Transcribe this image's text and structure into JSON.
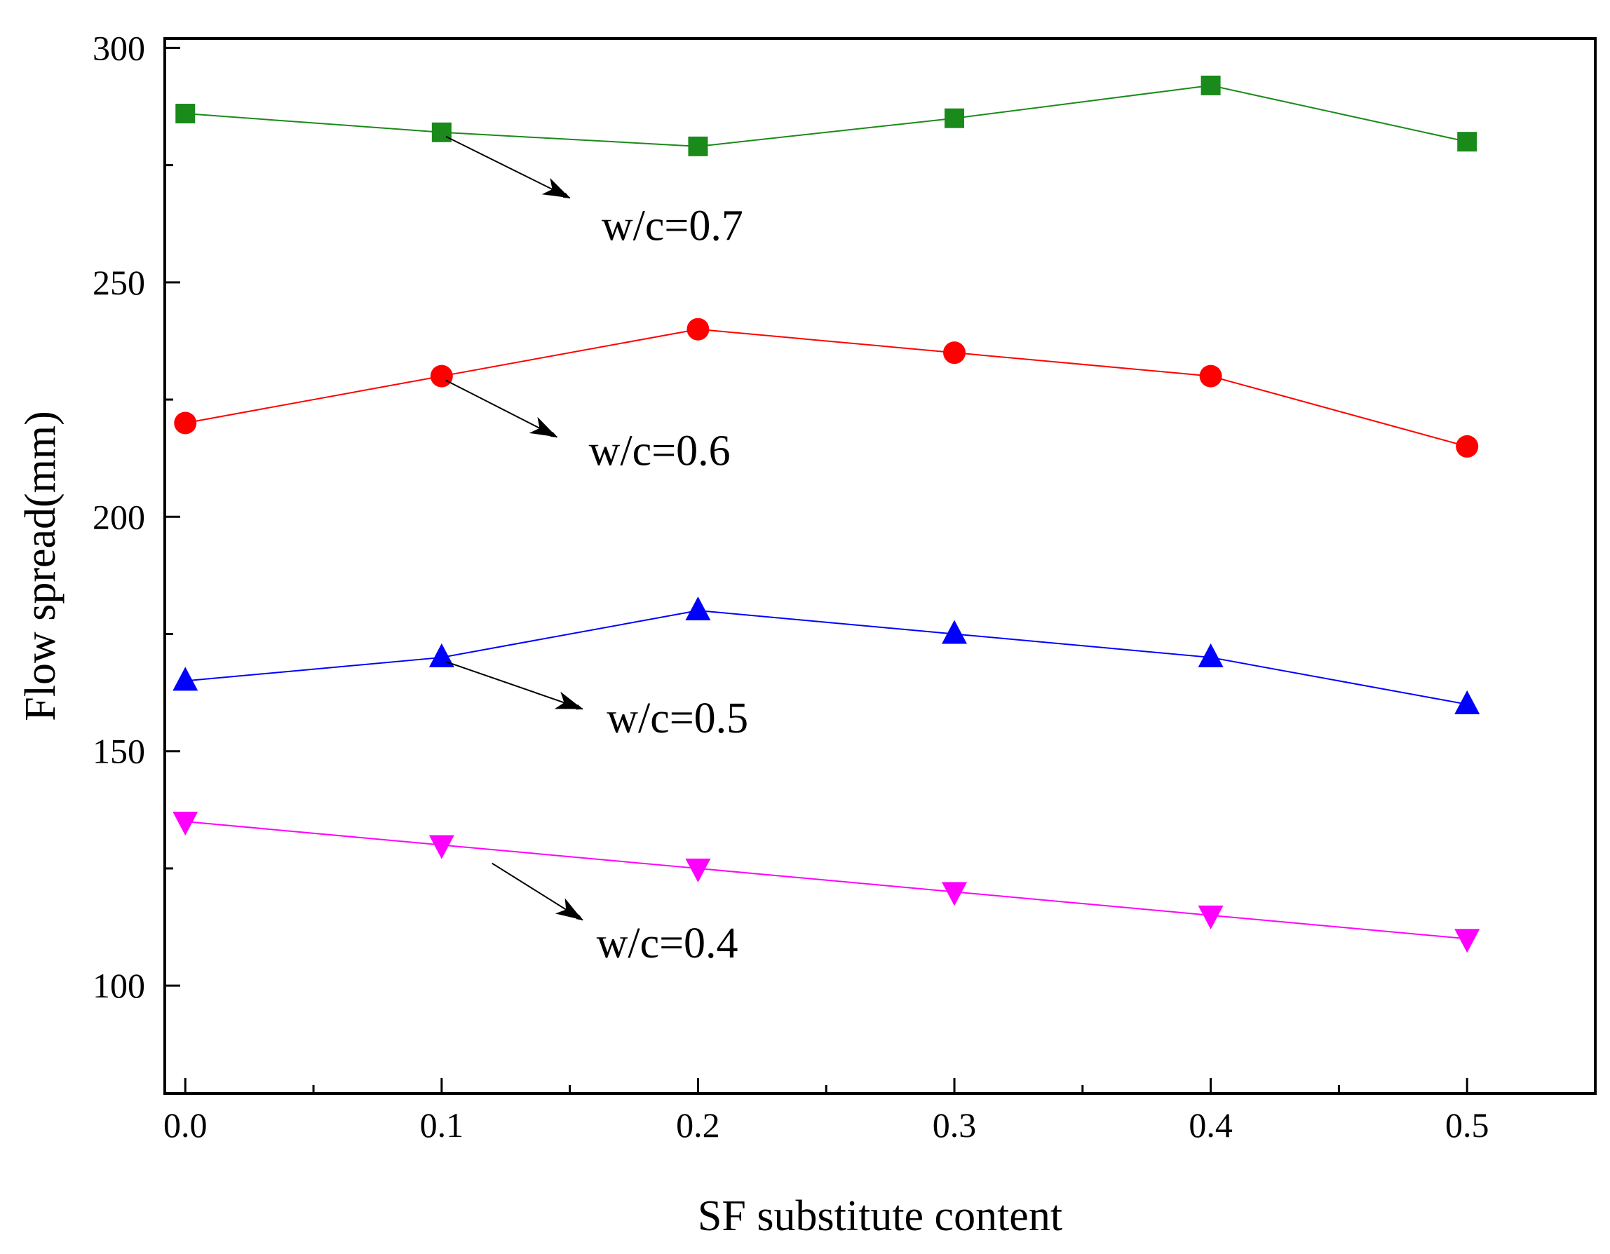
{
  "chart_data": {
    "type": "line",
    "title": "",
    "xlabel": "SF substitute content",
    "ylabel": "Flow spread(mm)",
    "x": [
      0.0,
      0.1,
      0.2,
      0.3,
      0.4,
      0.5
    ],
    "xlim": [
      -0.008,
      0.55
    ],
    "ylim": [
      77,
      302
    ],
    "xticks": [
      0.0,
      0.1,
      0.2,
      0.3,
      0.4,
      0.5
    ],
    "xtick_labels": [
      "0.0",
      "0.1",
      "0.2",
      "0.3",
      "0.4",
      "0.5"
    ],
    "yticks": [
      100,
      150,
      200,
      250,
      300
    ],
    "ytick_labels": [
      "100",
      "150",
      "200",
      "250",
      "300"
    ],
    "grid": false,
    "series": [
      {
        "name": "w/c=0.7",
        "color": "#1a8a1a",
        "marker": "square",
        "values": [
          286,
          282,
          279,
          285,
          292,
          280
        ],
        "annotation": {
          "text": "w/c=0.7",
          "from": [
            0.1,
            282
          ],
          "to": [
            0.15,
            268
          ],
          "label_at": [
            0.19,
            259
          ]
        }
      },
      {
        "name": "w/c=0.6",
        "color": "#ff0000",
        "marker": "circle",
        "values": [
          220,
          230,
          240,
          235,
          230,
          215
        ],
        "annotation": {
          "text": "w/c=0.6",
          "from": [
            0.1,
            230
          ],
          "to": [
            0.145,
            217
          ],
          "label_at": [
            0.185,
            211
          ]
        }
      },
      {
        "name": "w/c=0.5",
        "color": "#0000ff",
        "marker": "triangle-up",
        "values": [
          165,
          170,
          180,
          175,
          170,
          160
        ],
        "annotation": {
          "text": "w/c=0.5",
          "from": [
            0.1,
            170
          ],
          "to": [
            0.155,
            159
          ],
          "label_at": [
            0.192,
            154
          ]
        }
      },
      {
        "name": "w/c=0.4",
        "color": "#ff00ff",
        "marker": "triangle-down",
        "values": [
          135,
          130,
          125,
          120,
          115,
          110
        ],
        "annotation": {
          "text": "w/c=0.4",
          "from": [
            0.118,
            127
          ],
          "to": [
            0.155,
            114
          ],
          "label_at": [
            0.188,
            106
          ]
        }
      }
    ]
  }
}
